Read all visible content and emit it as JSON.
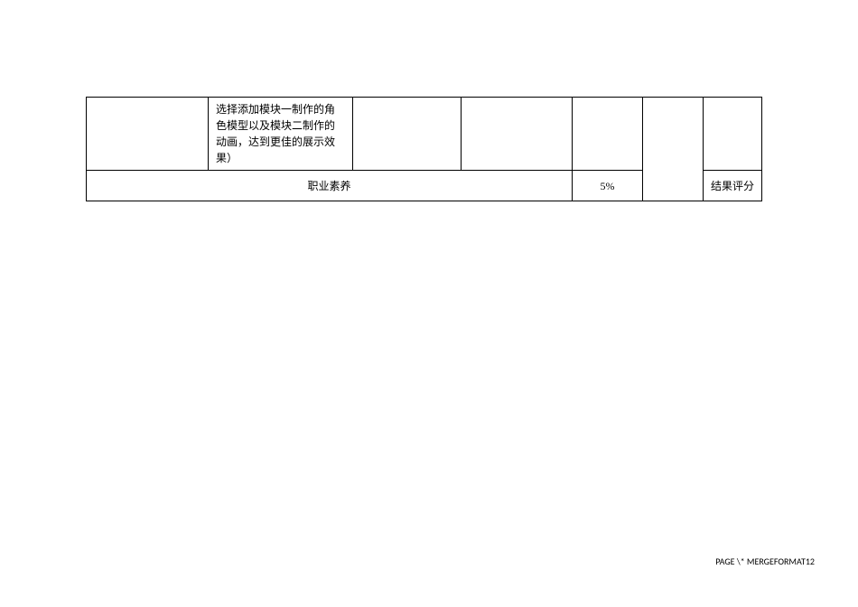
{
  "table": {
    "row1": {
      "cell2_text": "选择添加模块一制作的角色模型以及模块二制作的动画，达到更佳的展示效果）"
    },
    "row2": {
      "cell1_text": "职业素养",
      "cell2_text": "5%",
      "cell4_text": "结果评分"
    }
  },
  "footer": {
    "text": "PAGE  \\* MERGEFORMAT12"
  },
  "colors": {
    "background": "#ffffff",
    "border": "#000000",
    "text": "#000000"
  },
  "fonts": {
    "body_size": 12,
    "footer_size": 10
  }
}
